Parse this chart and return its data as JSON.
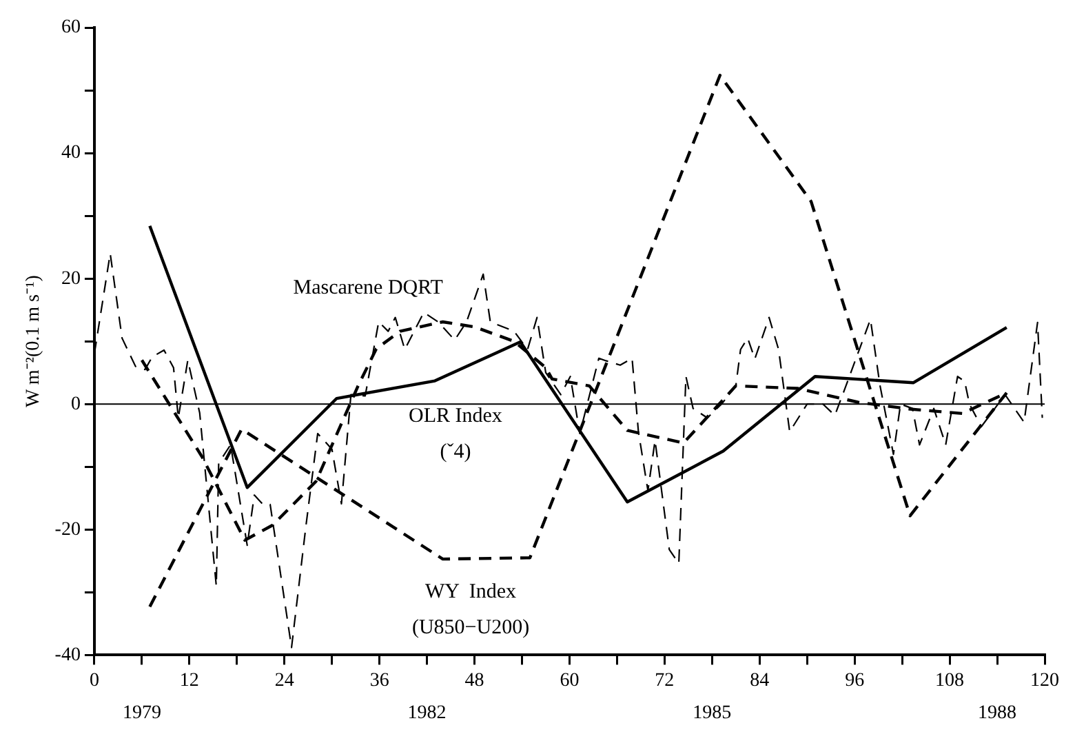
{
  "chart_data": {
    "type": "line",
    "ylabel": "W m⁻²(0.1 m s⁻¹)",
    "xlim": [
      0,
      120
    ],
    "xticks": [
      0,
      {
        "value": 6,
        "label": null
      },
      12,
      {
        "value": 18,
        "label": null
      },
      24,
      {
        "value": 30,
        "label": null
      },
      36,
      {
        "value": 42,
        "label": null
      },
      48,
      {
        "value": 54,
        "label": null
      },
      60,
      {
        "value": 66,
        "label": null
      },
      72,
      {
        "value": 78,
        "label": null
      },
      84,
      {
        "value": 90,
        "label": null
      },
      96,
      {
        "value": 102,
        "label": null
      },
      108,
      {
        "value": 114,
        "label": null
      },
      120
    ],
    "ylim": [
      -40,
      60
    ],
    "yticks": [
      -40,
      {
        "value": -30,
        "label": null
      },
      -20,
      {
        "value": -10,
        "label": null
      },
      0,
      {
        "value": 10,
        "label": null
      },
      20,
      {
        "value": 30,
        "label": null
      },
      40,
      {
        "value": 50,
        "label": null
      },
      60
    ],
    "grid": false,
    "legend": false,
    "marker": "none",
    "ref_lines": [
      {
        "axis": "y",
        "value": 0,
        "color": "#000000"
      }
    ],
    "annotations": [
      "1979",
      "1982",
      "1985",
      "1988"
    ],
    "series": [
      {
        "name": "Mascarene DQRT",
        "color": "#000000",
        "line_style": "dashed",
        "x": [
          0,
          2,
          3.5,
          5.2,
          6.4,
          7.3,
          8.8,
          10,
          10.6,
          11.8,
          13.3,
          15.4,
          15.7,
          17.2,
          19.3,
          20.2,
          21.3,
          22.2,
          24.9,
          26.7,
          28.2,
          30,
          31.2,
          32.4,
          34.2,
          35.9,
          37.1,
          38,
          39.2,
          41.6,
          43.4,
          45.5,
          47,
          49.1,
          50,
          53,
          54.7,
          55.9,
          57,
          58.9,
          60.1,
          61.3,
          63.7,
          64.6,
          66.4,
          67.9,
          68.7,
          69.9,
          70.8,
          72.6,
          73.8,
          74.7,
          75.6,
          77.4,
          79.2,
          81,
          81.6,
          82.5,
          83.4,
          85.2,
          86.4,
          87.8,
          90,
          92,
          93.5,
          94.7,
          98,
          99.2,
          100.9,
          101.8,
          103.3,
          104.2,
          106,
          107.5,
          109,
          109.9,
          110.5,
          112,
          115,
          117.4,
          119.1,
          119.7
        ],
        "values": [
          8,
          24,
          10.5,
          6,
          5.5,
          7.5,
          8.6,
          5.8,
          -2.2,
          7,
          -1.4,
          -29,
          -9.4,
          -6.5,
          -22.5,
          -14.5,
          -16,
          -16,
          -38.8,
          -19.6,
          -4.7,
          -7.2,
          -15.9,
          1.5,
          1.3,
          13.1,
          11.6,
          13.8,
          8.7,
          14.6,
          13.1,
          10.2,
          13.1,
          20.7,
          13.1,
          11.6,
          8.7,
          13.8,
          5,
          1.5,
          4.4,
          -4.7,
          7.3,
          6.9,
          6.2,
          7.3,
          -4.4,
          -13.8,
          -5.8,
          -23.2,
          -25.4,
          4.4,
          -0.7,
          -2.2,
          0,
          2.9,
          8.7,
          10.5,
          7.2,
          13.8,
          8.7,
          -4.4,
          0,
          0,
          -1.8,
          2.2,
          13.5,
          3,
          -8,
          0,
          -0.7,
          -6.5,
          -0.7,
          -6.5,
          4.4,
          3.6,
          0,
          -3.6,
          1.5,
          -2.9,
          13,
          -2.2
        ]
      },
      {
        "color": "#000000",
        "line_style": "dashed",
        "x": [
          6,
          13.6,
          19,
          22.5,
          28,
          33.3,
          35.6,
          38.6,
          44,
          48,
          53,
          57,
          57.8,
          62.5,
          67.3,
          74.4,
          81,
          88.8,
          96.4,
          103,
          109.6,
          115.2
        ],
        "values": [
          7,
          -8.4,
          -21.7,
          -19.3,
          -12.3,
          2.9,
          8.8,
          11.6,
          13.1,
          12.3,
          10,
          5.8,
          4,
          2.9,
          -4.2,
          -6.2,
          2.9,
          2.5,
          0.3,
          -0.8,
          -1.5,
          1.8
        ]
      },
      {
        "name": "OLR Index (ˇ4)",
        "color": "#000000",
        "line_style": "solid",
        "x": [
          7,
          19.3,
          30.6,
          43,
          53.8,
          67.3,
          79.4,
          91,
          103.4,
          115.2
        ],
        "values": [
          28.4,
          -13.3,
          0.9,
          3.7,
          9.9,
          -15.6,
          -7.5,
          4.4,
          3.4,
          12.2
        ]
      },
      {
        "name": "WY  Index (U850−U200)",
        "color": "#000000",
        "line_style": "dashed",
        "x": [
          7,
          18.6,
          44,
          55,
          79,
          90.5,
          103,
          115.2
        ],
        "values": [
          -32.3,
          -4,
          -24.7,
          -24.5,
          52.4,
          32.3,
          -17.8,
          1.8
        ]
      }
    ]
  }
}
